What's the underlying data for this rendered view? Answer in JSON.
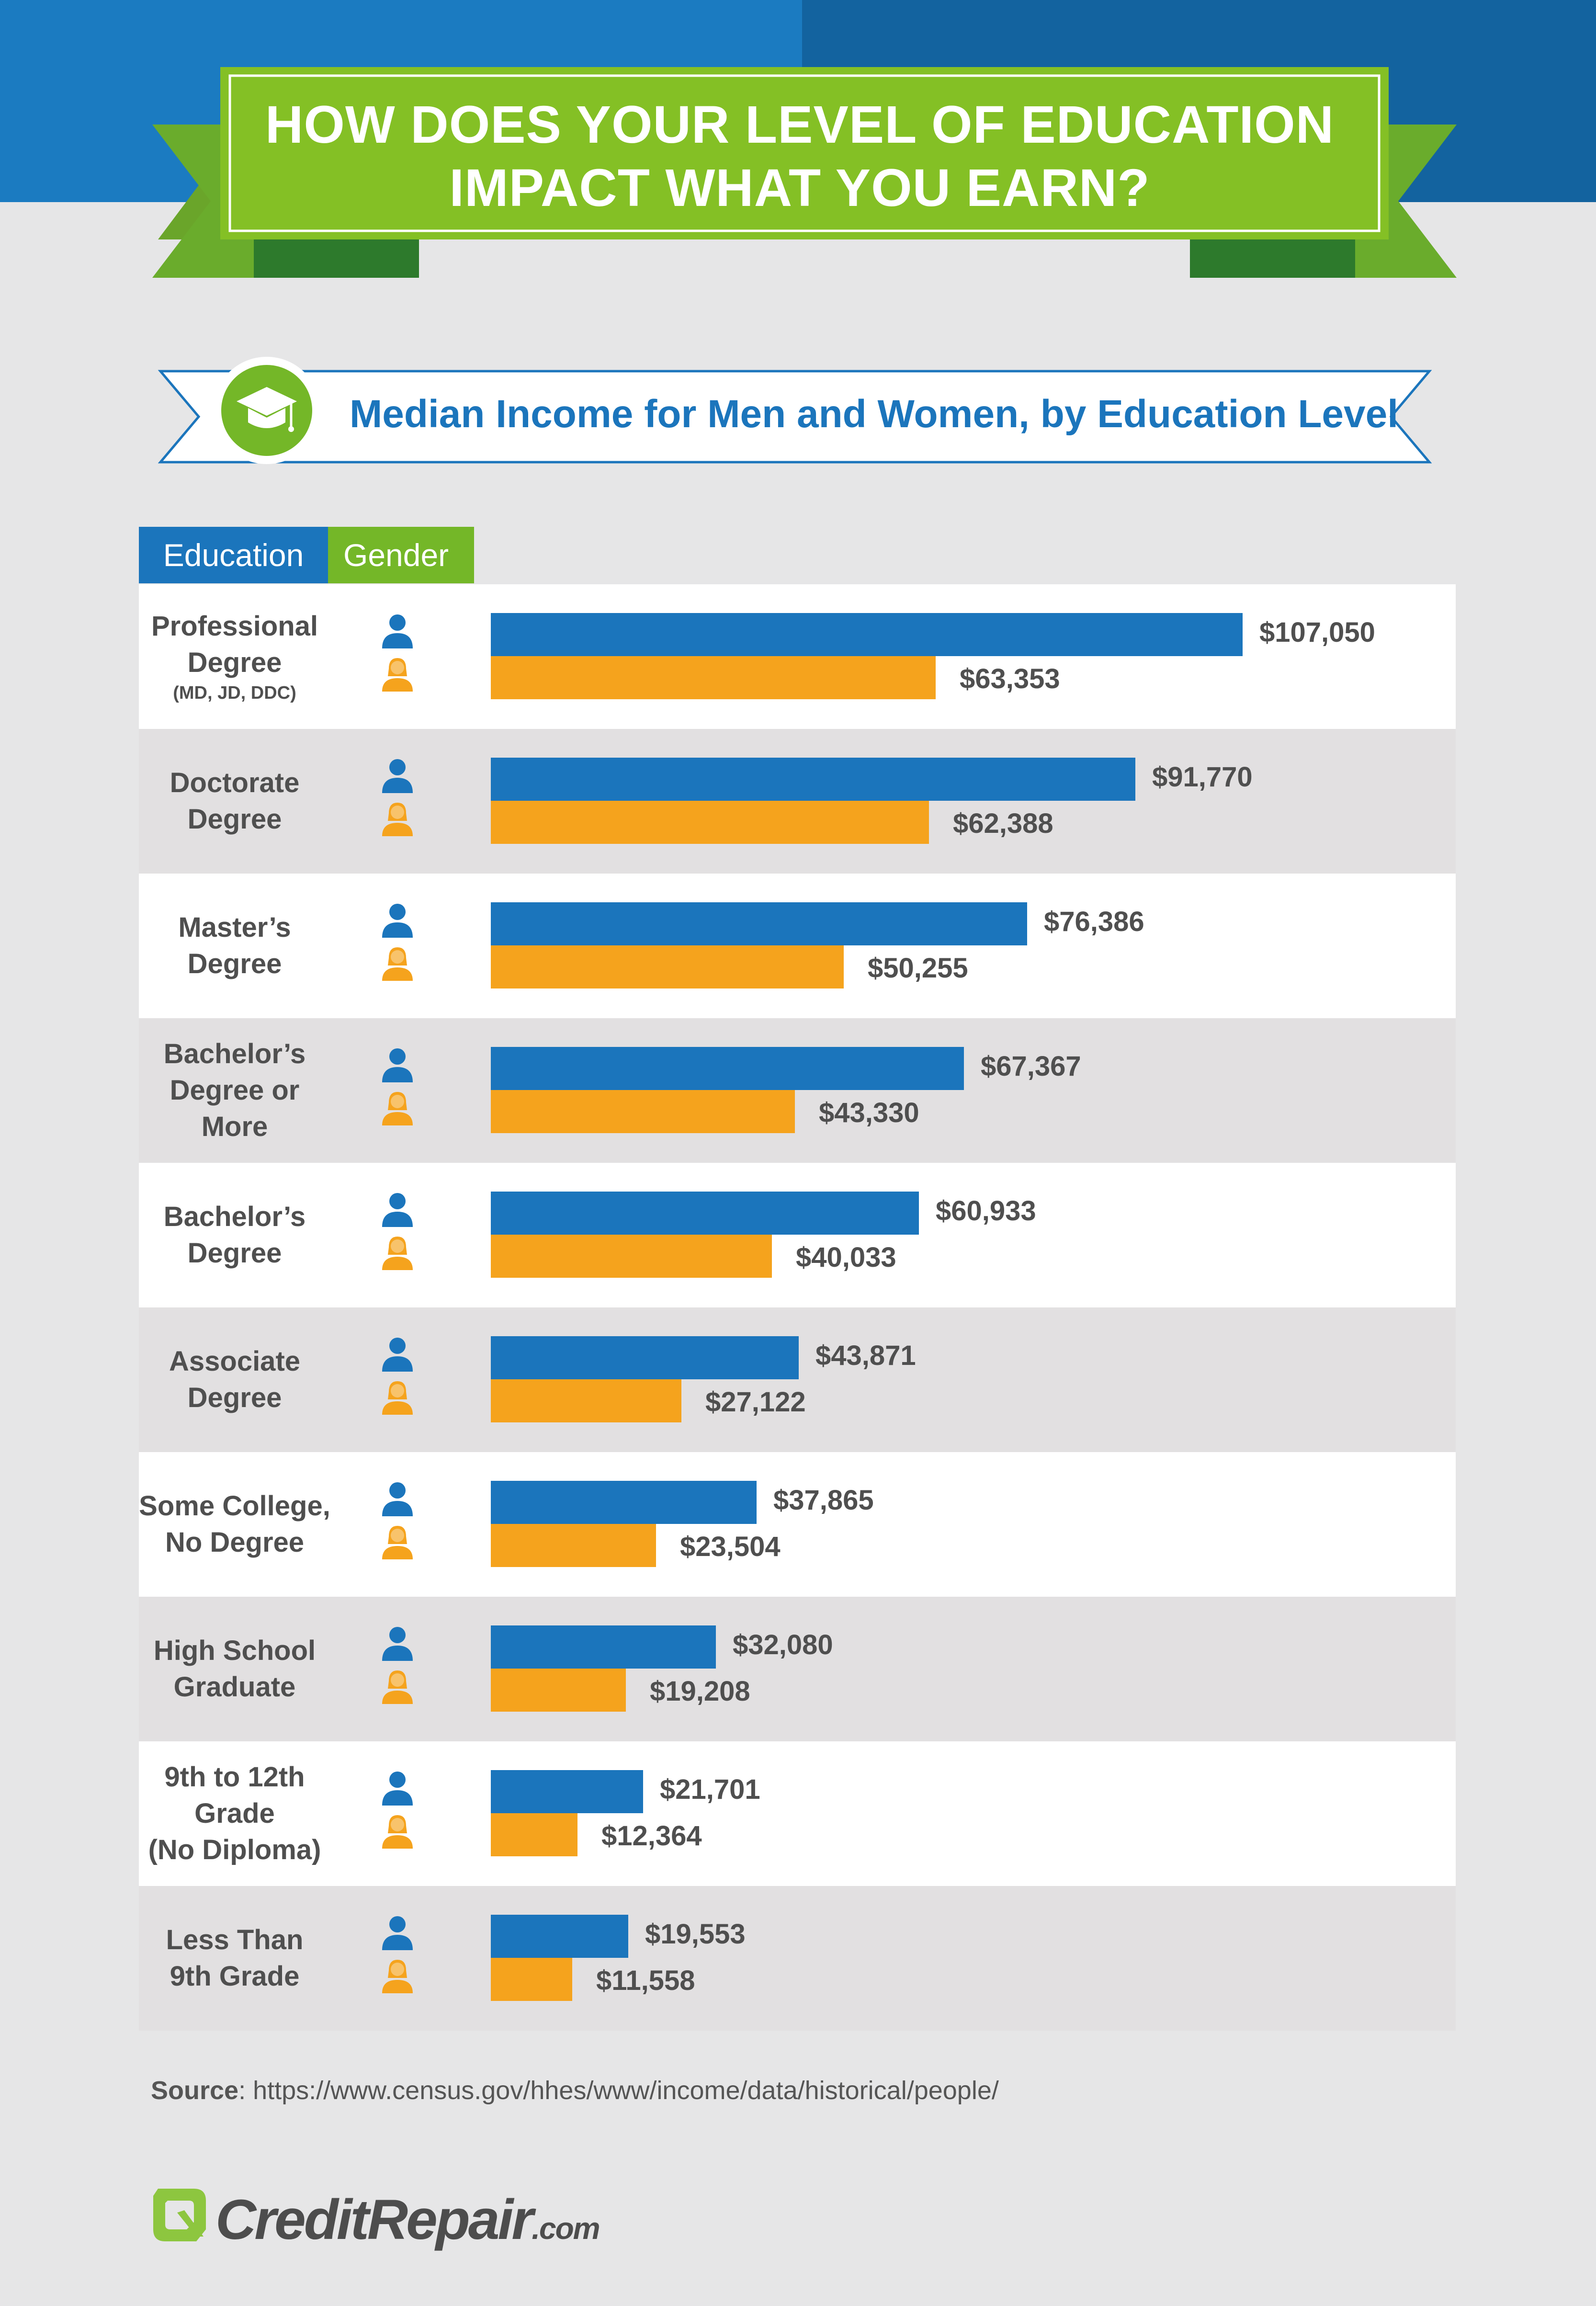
{
  "title": "HOW DOES YOUR LEVEL OF EDUCATION IMPACT WHAT YOU EARN?",
  "title_line1": "HOW DOES YOUR LEVEL OF EDUCATION",
  "title_line2": "IMPACT WHAT YOU EARN?",
  "subtitle": "Median Income for Men and Women, by Education Level",
  "headers": {
    "education": "Education",
    "gender": "Gender"
  },
  "icons": {
    "cap": "graduation-cap-icon",
    "men": "man-icon",
    "women": "woman-icon"
  },
  "colors": {
    "men": "#1b75bc",
    "women": "#f5a31d",
    "accent": "#74b728"
  },
  "source_label": "Source",
  "source_text": ": https://www.census.gov/hhes/www/income/data/historical/people/",
  "logo": {
    "main": "CreditRepair",
    "suffix": ".com"
  },
  "chart_data": {
    "type": "bar",
    "title": "Median Income for Men and Women, by Education Level",
    "orientation": "horizontal",
    "categories": [
      "Professional Degree (MD, JD, DDC)",
      "Doctorate Degree",
      "Master's Degree",
      "Bachelor's Degree or More",
      "Bachelor's Degree",
      "Associate Degree",
      "Some College, No Degree",
      "High School Graduate",
      "9th to 12th Grade (No Diploma)",
      "Less Than 9th Grade"
    ],
    "series": [
      {
        "name": "Men",
        "values": [
          107050,
          91770,
          76386,
          67367,
          60933,
          43871,
          37865,
          32080,
          21701,
          19553
        ]
      },
      {
        "name": "Women",
        "values": [
          63353,
          62388,
          50255,
          43330,
          40033,
          27122,
          23504,
          19208,
          12364,
          11558
        ]
      }
    ],
    "value_labels": {
      "men": [
        "$107,050",
        "$91,770",
        "$76,386",
        "$67,367",
        "$60,933",
        "$43,871",
        "$37,865",
        "$32,080",
        "$21,701",
        "$19,553"
      ],
      "women": [
        "$63,353",
        "$62,388",
        "$50,255",
        "$43,330",
        "$40,033",
        "$27,122",
        "$23,504",
        "$19,208",
        "$12,364",
        "$11,558"
      ]
    },
    "row_labels": [
      [
        "Professional",
        "Degree",
        "(MD, JD, DDC)"
      ],
      [
        "Doctorate",
        "Degree"
      ],
      [
        "Master’s",
        "Degree"
      ],
      [
        "Bachelor’s",
        "Degree or",
        "More"
      ],
      [
        "Bachelor’s",
        "Degree"
      ],
      [
        "Associate",
        "Degree"
      ],
      [
        "Some College,",
        "No Degree"
      ],
      [
        "High School",
        "Graduate"
      ],
      [
        "9th to 12th",
        "Grade",
        "(No Diploma)"
      ],
      [
        "Less Than",
        "9th Grade"
      ]
    ],
    "xlim": [
      0,
      107050
    ],
    "grid": false
  }
}
